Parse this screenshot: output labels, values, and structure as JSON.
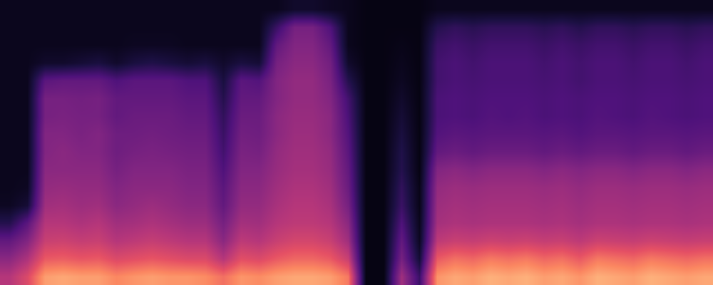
{
  "chart_data": {
    "type": "heatmap",
    "tick_labels": false,
    "grid": false,
    "zlim": [
      0,
      100
    ],
    "cells": [
      [
        50,
        60,
        80,
        82,
        80,
        80,
        75,
        78,
        80,
        78,
        78,
        76,
        70,
        78,
        76,
        80,
        82,
        82,
        80,
        72,
        3,
        3,
        45,
        20,
        78,
        82,
        80,
        84,
        82,
        84,
        80,
        82,
        78,
        84,
        82,
        80,
        84,
        82,
        80,
        82
      ],
      [
        40,
        48,
        65,
        66,
        64,
        65,
        60,
        62,
        64,
        62,
        60,
        60,
        50,
        62,
        60,
        65,
        68,
        68,
        65,
        55,
        3,
        3,
        35,
        10,
        65,
        70,
        68,
        72,
        70,
        72,
        68,
        70,
        65,
        72,
        70,
        68,
        72,
        70,
        68,
        70
      ],
      [
        30,
        38,
        55,
        56,
        54,
        55,
        50,
        52,
        54,
        52,
        50,
        50,
        40,
        52,
        50,
        55,
        58,
        58,
        55,
        45,
        3,
        3,
        30,
        6,
        52,
        55,
        54,
        56,
        55,
        56,
        54,
        55,
        52,
        56,
        55,
        54,
        56,
        55,
        54,
        55
      ],
      [
        15,
        28,
        50,
        50,
        48,
        50,
        45,
        46,
        48,
        46,
        44,
        44,
        35,
        46,
        45,
        50,
        52,
        52,
        50,
        40,
        3,
        3,
        25,
        5,
        46,
        48,
        47,
        48,
        48,
        48,
        47,
        48,
        46,
        48,
        48,
        47,
        48,
        48,
        47,
        48
      ],
      [
        6,
        10,
        45,
        46,
        44,
        45,
        40,
        42,
        44,
        42,
        40,
        40,
        30,
        42,
        42,
        47,
        50,
        50,
        47,
        35,
        3,
        3,
        20,
        4,
        44,
        46,
        45,
        46,
        46,
        46,
        45,
        46,
        44,
        46,
        46,
        45,
        46,
        46,
        45,
        46
      ],
      [
        5,
        6,
        42,
        43,
        42,
        42,
        38,
        40,
        40,
        40,
        38,
        38,
        28,
        40,
        40,
        45,
        48,
        48,
        45,
        32,
        3,
        3,
        18,
        4,
        42,
        44,
        43,
        44,
        44,
        44,
        43,
        44,
        42,
        44,
        44,
        43,
        44,
        44,
        43,
        44
      ],
      [
        5,
        5,
        40,
        40,
        40,
        40,
        35,
        38,
        38,
        38,
        36,
        36,
        25,
        38,
        38,
        43,
        46,
        46,
        43,
        30,
        3,
        3,
        15,
        3,
        38,
        40,
        38,
        40,
        40,
        40,
        38,
        40,
        38,
        40,
        40,
        38,
        40,
        40,
        38,
        40
      ],
      [
        5,
        5,
        38,
        40,
        38,
        38,
        33,
        35,
        36,
        35,
        34,
        34,
        22,
        36,
        35,
        42,
        45,
        45,
        42,
        28,
        3,
        3,
        14,
        3,
        30,
        32,
        30,
        32,
        32,
        32,
        30,
        32,
        30,
        32,
        32,
        30,
        32,
        32,
        30,
        32
      ],
      [
        5,
        5,
        38,
        38,
        36,
        38,
        33,
        33,
        34,
        33,
        32,
        32,
        20,
        34,
        33,
        40,
        44,
        44,
        40,
        26,
        3,
        3,
        12,
        3,
        26,
        28,
        27,
        28,
        28,
        28,
        27,
        28,
        26,
        28,
        28,
        27,
        28,
        28,
        27,
        28
      ],
      [
        5,
        5,
        35,
        36,
        35,
        35,
        30,
        32,
        32,
        32,
        30,
        30,
        18,
        32,
        32,
        40,
        43,
        43,
        40,
        24,
        3,
        3,
        10,
        3,
        24,
        25,
        24,
        26,
        25,
        26,
        24,
        25,
        24,
        26,
        25,
        24,
        26,
        25,
        24,
        25
      ],
      [
        5,
        5,
        35,
        35,
        34,
        35,
        30,
        30,
        30,
        30,
        28,
        28,
        15,
        30,
        30,
        38,
        42,
        42,
        38,
        22,
        3,
        3,
        8,
        3,
        24,
        25,
        24,
        25,
        25,
        25,
        24,
        25,
        24,
        25,
        25,
        24,
        25,
        25,
        24,
        25
      ],
      [
        5,
        5,
        28,
        30,
        30,
        30,
        25,
        28,
        28,
        28,
        25,
        25,
        12,
        28,
        26,
        38,
        42,
        42,
        36,
        15,
        3,
        3,
        6,
        3,
        22,
        24,
        23,
        24,
        24,
        24,
        23,
        24,
        22,
        24,
        24,
        23,
        24,
        24,
        23,
        24
      ],
      [
        5,
        5,
        8,
        8,
        10,
        12,
        8,
        12,
        14,
        12,
        10,
        12,
        8,
        12,
        10,
        35,
        40,
        40,
        34,
        8,
        3,
        3,
        5,
        3,
        22,
        24,
        22,
        24,
        24,
        24,
        22,
        24,
        22,
        24,
        24,
        22,
        24,
        24,
        22,
        24
      ],
      [
        5,
        5,
        5,
        5,
        5,
        5,
        5,
        6,
        6,
        6,
        5,
        5,
        5,
        5,
        5,
        30,
        38,
        38,
        30,
        5,
        3,
        3,
        4,
        3,
        20,
        22,
        20,
        22,
        22,
        22,
        20,
        22,
        20,
        22,
        22,
        20,
        22,
        22,
        20,
        22
      ],
      [
        5,
        5,
        5,
        5,
        5,
        5,
        5,
        5,
        5,
        5,
        5,
        5,
        5,
        5,
        5,
        20,
        35,
        35,
        25,
        5,
        3,
        3,
        3,
        3,
        15,
        18,
        16,
        18,
        18,
        18,
        16,
        18,
        15,
        18,
        18,
        16,
        18,
        18,
        16,
        18
      ],
      [
        5,
        5,
        5,
        5,
        5,
        5,
        5,
        5,
        5,
        5,
        5,
        5,
        5,
        5,
        5,
        5,
        8,
        8,
        6,
        5,
        3,
        3,
        3,
        3,
        5,
        5,
        5,
        5,
        5,
        5,
        5,
        5,
        5,
        5,
        5,
        5,
        5,
        5,
        5,
        5
      ]
    ]
  }
}
